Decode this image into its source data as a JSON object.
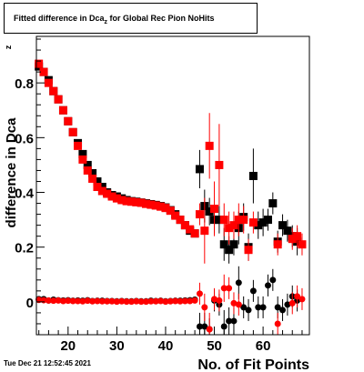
{
  "chart_data": {
    "type": "scatter",
    "title_main": "Fitted difference in Dca",
    "title_sub": "z",
    "title_rest": " for Global Rec Pion NoHits",
    "xlabel": "No. of Fit Points",
    "ylabel": "difference in Dca",
    "ylabel_sub": "z",
    "xlim": [
      13.5,
      69.5
    ],
    "ylim": [
      -0.12,
      0.97
    ],
    "x_ticks": [
      20,
      30,
      40,
      50,
      60
    ],
    "y_ticks": [
      0,
      0.2,
      0.4,
      0.6,
      0.8
    ],
    "y_tick_labels": [
      "0",
      "0.2",
      "0.4",
      "0.6",
      "0.8"
    ],
    "series": [
      {
        "marker": "square",
        "color": "#000000",
        "points": [
          {
            "x": 14,
            "y": 0.86
          },
          {
            "x": 15,
            "y": 0.84
          },
          {
            "x": 16,
            "y": 0.81
          },
          {
            "x": 17,
            "y": 0.77
          },
          {
            "x": 18,
            "y": 0.74
          },
          {
            "x": 19,
            "y": 0.7
          },
          {
            "x": 20,
            "y": 0.66
          },
          {
            "x": 21,
            "y": 0.62
          },
          {
            "x": 22,
            "y": 0.58
          },
          {
            "x": 23,
            "y": 0.54
          },
          {
            "x": 24,
            "y": 0.5
          },
          {
            "x": 25,
            "y": 0.47
          },
          {
            "x": 26,
            "y": 0.44
          },
          {
            "x": 27,
            "y": 0.42
          },
          {
            "x": 28,
            "y": 0.4
          },
          {
            "x": 29,
            "y": 0.39
          },
          {
            "x": 30,
            "y": 0.385
          },
          {
            "x": 31,
            "y": 0.378
          },
          {
            "x": 32,
            "y": 0.372
          },
          {
            "x": 33,
            "y": 0.368
          },
          {
            "x": 34,
            "y": 0.366
          },
          {
            "x": 35,
            "y": 0.363
          },
          {
            "x": 36,
            "y": 0.36
          },
          {
            "x": 37,
            "y": 0.357
          },
          {
            "x": 38,
            "y": 0.354
          },
          {
            "x": 39,
            "y": 0.35
          },
          {
            "x": 40,
            "y": 0.345
          },
          {
            "x": 41,
            "y": 0.335
          },
          {
            "x": 42,
            "y": 0.32
          },
          {
            "x": 43,
            "y": 0.3
          },
          {
            "x": 44,
            "y": 0.28
          },
          {
            "x": 45,
            "y": 0.26
          },
          {
            "x": 46,
            "y": 0.25
          },
          {
            "x": 47,
            "y": 0.485,
            "err": 0.07
          },
          {
            "x": 48,
            "y": 0.35,
            "err": 0.06
          },
          {
            "x": 49,
            "y": 0.33,
            "err": 0.05
          },
          {
            "x": 50,
            "y": 0.3,
            "err": 0.05
          },
          {
            "x": 51,
            "y": 0.3,
            "err": 0.05
          },
          {
            "x": 52,
            "y": 0.21,
            "err": 0.06
          },
          {
            "x": 53,
            "y": 0.19,
            "err": 0.05
          },
          {
            "x": 54,
            "y": 0.21,
            "err": 0.04
          },
          {
            "x": 55,
            "y": 0.27,
            "err": 0.06
          },
          {
            "x": 56,
            "y": 0.31,
            "err": 0.05
          },
          {
            "x": 57,
            "y": 0.2,
            "err": 0.05
          },
          {
            "x": 58,
            "y": 0.46,
            "err": 0.1
          },
          {
            "x": 59,
            "y": 0.28,
            "err": 0.05
          },
          {
            "x": 60,
            "y": 0.29,
            "err": 0.05
          },
          {
            "x": 61,
            "y": 0.3,
            "err": 0.04
          },
          {
            "x": 62,
            "y": 0.36,
            "err": 0.04
          },
          {
            "x": 63,
            "y": 0.22,
            "err": 0.04
          },
          {
            "x": 64,
            "y": 0.28,
            "err": 0.04
          },
          {
            "x": 65,
            "y": 0.26,
            "err": 0.04
          },
          {
            "x": 66,
            "y": 0.24,
            "err": 0.04
          },
          {
            "x": 67,
            "y": 0.22,
            "err": 0.05
          }
        ]
      },
      {
        "marker": "square",
        "color": "#ff0000",
        "points": [
          {
            "x": 14,
            "y": 0.87
          },
          {
            "x": 15,
            "y": 0.84
          },
          {
            "x": 16,
            "y": 0.8
          },
          {
            "x": 17,
            "y": 0.77
          },
          {
            "x": 18,
            "y": 0.74
          },
          {
            "x": 19,
            "y": 0.7
          },
          {
            "x": 20,
            "y": 0.66
          },
          {
            "x": 21,
            "y": 0.62
          },
          {
            "x": 22,
            "y": 0.57
          },
          {
            "x": 23,
            "y": 0.52
          },
          {
            "x": 24,
            "y": 0.48
          },
          {
            "x": 25,
            "y": 0.45
          },
          {
            "x": 26,
            "y": 0.42
          },
          {
            "x": 27,
            "y": 0.405
          },
          {
            "x": 28,
            "y": 0.395
          },
          {
            "x": 29,
            "y": 0.385
          },
          {
            "x": 30,
            "y": 0.378
          },
          {
            "x": 31,
            "y": 0.372
          },
          {
            "x": 32,
            "y": 0.368
          },
          {
            "x": 33,
            "y": 0.366
          },
          {
            "x": 34,
            "y": 0.364
          },
          {
            "x": 35,
            "y": 0.362
          },
          {
            "x": 36,
            "y": 0.358
          },
          {
            "x": 37,
            "y": 0.355
          },
          {
            "x": 38,
            "y": 0.352
          },
          {
            "x": 39,
            "y": 0.348
          },
          {
            "x": 40,
            "y": 0.343
          },
          {
            "x": 41,
            "y": 0.333
          },
          {
            "x": 42,
            "y": 0.315
          },
          {
            "x": 43,
            "y": 0.3
          },
          {
            "x": 44,
            "y": 0.28
          },
          {
            "x": 45,
            "y": 0.265
          },
          {
            "x": 46,
            "y": 0.25
          },
          {
            "x": 47,
            "y": 0.32,
            "err": 0.04
          },
          {
            "x": 48,
            "y": 0.26,
            "err": 0.12
          },
          {
            "x": 49,
            "y": 0.57,
            "err": 0.12
          },
          {
            "x": 50,
            "y": 0.34,
            "err": 0.1
          },
          {
            "x": 51,
            "y": 0.5,
            "err": 0.15
          },
          {
            "x": 52,
            "y": 0.3,
            "err": 0.06
          },
          {
            "x": 53,
            "y": 0.27,
            "err": 0.06
          },
          {
            "x": 54,
            "y": 0.28,
            "err": 0.05
          },
          {
            "x": 55,
            "y": 0.3,
            "err": 0.06
          },
          {
            "x": 56,
            "y": 0.3,
            "err": 0.05
          },
          {
            "x": 57,
            "y": 0.19,
            "err": 0.04
          },
          {
            "x": 58,
            "y": 0.29,
            "err": 0.04
          },
          {
            "x": 63,
            "y": 0.21,
            "err": 0.04
          },
          {
            "x": 66,
            "y": 0.23,
            "err": 0.04
          },
          {
            "x": 67,
            "y": 0.24,
            "err": 0.04
          },
          {
            "x": 68,
            "y": 0.21,
            "err": 0.04
          }
        ]
      },
      {
        "marker": "circle",
        "color": "#000000",
        "points": [
          {
            "x": 14,
            "y": 0.01
          },
          {
            "x": 15,
            "y": 0.01
          },
          {
            "x": 16,
            "y": 0.005
          },
          {
            "x": 17,
            "y": 0.008
          },
          {
            "x": 18,
            "y": 0.006
          },
          {
            "x": 19,
            "y": 0.005
          },
          {
            "x": 20,
            "y": 0.006
          },
          {
            "x": 21,
            "y": 0.004
          },
          {
            "x": 22,
            "y": 0.005
          },
          {
            "x": 23,
            "y": 0.004
          },
          {
            "x": 24,
            "y": 0.006
          },
          {
            "x": 25,
            "y": 0.003
          },
          {
            "x": 26,
            "y": 0.004
          },
          {
            "x": 27,
            "y": 0.004
          },
          {
            "x": 28,
            "y": 0.003
          },
          {
            "x": 29,
            "y": 0.003
          },
          {
            "x": 30,
            "y": 0.002
          },
          {
            "x": 31,
            "y": 0.003
          },
          {
            "x": 32,
            "y": 0.002
          },
          {
            "x": 33,
            "y": 0.002
          },
          {
            "x": 34,
            "y": 0.003
          },
          {
            "x": 35,
            "y": 0.002
          },
          {
            "x": 36,
            "y": 0.002
          },
          {
            "x": 37,
            "y": 0.004
          },
          {
            "x": 38,
            "y": 0.003
          },
          {
            "x": 39,
            "y": 0.004
          },
          {
            "x": 40,
            "y": 0.002
          },
          {
            "x": 41,
            "y": 0.003
          },
          {
            "x": 42,
            "y": 0.004
          },
          {
            "x": 43,
            "y": 0.004
          },
          {
            "x": 44,
            "y": 0.005
          },
          {
            "x": 45,
            "y": 0.006
          },
          {
            "x": 46,
            "y": 0.008
          },
          {
            "x": 47,
            "y": -0.09,
            "err": 0.05
          },
          {
            "x": 48,
            "y": -0.09,
            "err": 0.05
          },
          {
            "x": 49,
            "y": -0.1,
            "err": 0.04
          },
          {
            "x": 50,
            "y": 0.005,
            "err": 0.04
          },
          {
            "x": 51,
            "y": -0.01,
            "err": 0.04
          },
          {
            "x": 52,
            "y": -0.09,
            "err": 0.06
          },
          {
            "x": 53,
            "y": -0.07,
            "err": 0.05
          },
          {
            "x": 54,
            "y": -0.07,
            "err": 0.05
          },
          {
            "x": 55,
            "y": 0.07,
            "err": 0.06
          },
          {
            "x": 56,
            "y": -0.02,
            "err": 0.04
          },
          {
            "x": 57,
            "y": -0.03,
            "err": 0.04
          },
          {
            "x": 58,
            "y": 0.04,
            "err": 0.04
          },
          {
            "x": 59,
            "y": -0.02,
            "err": 0.04
          },
          {
            "x": 60,
            "y": -0.02,
            "err": 0.04
          },
          {
            "x": 61,
            "y": 0.06,
            "err": 0.04
          },
          {
            "x": 62,
            "y": 0.08,
            "err": 0.04
          },
          {
            "x": 63,
            "y": -0.02,
            "err": 0.04
          },
          {
            "x": 64,
            "y": -0.03,
            "err": 0.04
          },
          {
            "x": 65,
            "y": -0.01,
            "err": 0.04
          },
          {
            "x": 66,
            "y": 0.02,
            "err": 0.04
          },
          {
            "x": 67,
            "y": 0.005,
            "err": 0.04
          }
        ]
      },
      {
        "marker": "circle",
        "color": "#ff0000",
        "points": [
          {
            "x": 14,
            "y": 0.007
          },
          {
            "x": 15,
            "y": 0.006
          },
          {
            "x": 16,
            "y": 0.005
          },
          {
            "x": 17,
            "y": 0.004
          },
          {
            "x": 18,
            "y": 0.005
          },
          {
            "x": 19,
            "y": 0.003
          },
          {
            "x": 20,
            "y": 0.004
          },
          {
            "x": 21,
            "y": 0.003
          },
          {
            "x": 22,
            "y": 0.003
          },
          {
            "x": 23,
            "y": 0.002
          },
          {
            "x": 24,
            "y": 0.004
          },
          {
            "x": 25,
            "y": 0.002
          },
          {
            "x": 26,
            "y": 0.003
          },
          {
            "x": 27,
            "y": 0.002
          },
          {
            "x": 28,
            "y": 0.002
          },
          {
            "x": 29,
            "y": 0.002
          },
          {
            "x": 30,
            "y": 0.001
          },
          {
            "x": 31,
            "y": 0.002
          },
          {
            "x": 32,
            "y": 0.001
          },
          {
            "x": 33,
            "y": 0.001
          },
          {
            "x": 34,
            "y": 0.002
          },
          {
            "x": 35,
            "y": 0.001
          },
          {
            "x": 36,
            "y": 0.001
          },
          {
            "x": 37,
            "y": 0.002
          },
          {
            "x": 38,
            "y": 0.002
          },
          {
            "x": 39,
            "y": 0.003
          },
          {
            "x": 40,
            "y": 0.001
          },
          {
            "x": 41,
            "y": 0.002
          },
          {
            "x": 42,
            "y": 0.003
          },
          {
            "x": 43,
            "y": 0.002
          },
          {
            "x": 44,
            "y": 0.003
          },
          {
            "x": 45,
            "y": 0.003
          },
          {
            "x": 46,
            "y": 0.005
          },
          {
            "x": 47,
            "y": 0.03,
            "err": 0.04
          },
          {
            "x": 48,
            "y": -0.02,
            "err": 0.05
          },
          {
            "x": 49,
            "y": -0.1,
            "err": 0.06
          },
          {
            "x": 50,
            "y": 0.01,
            "err": 0.04
          },
          {
            "x": 51,
            "y": 0.005,
            "err": 0.04
          },
          {
            "x": 52,
            "y": 0.05,
            "err": 0.05
          },
          {
            "x": 53,
            "y": 0.05,
            "err": 0.04
          },
          {
            "x": 54,
            "y": -0.005,
            "err": 0.04
          },
          {
            "x": 55,
            "y": -0.01,
            "err": 0.04
          },
          {
            "x": 63,
            "y": -0.08,
            "err": 0.04
          },
          {
            "x": 66,
            "y": -0.005,
            "err": 0.04
          },
          {
            "x": 67,
            "y": 0.02,
            "err": 0.04
          },
          {
            "x": 68,
            "y": 0.01,
            "err": 0.04
          }
        ]
      }
    ]
  },
  "timestamp": "Tue Dec 21 12:52:45 2021"
}
